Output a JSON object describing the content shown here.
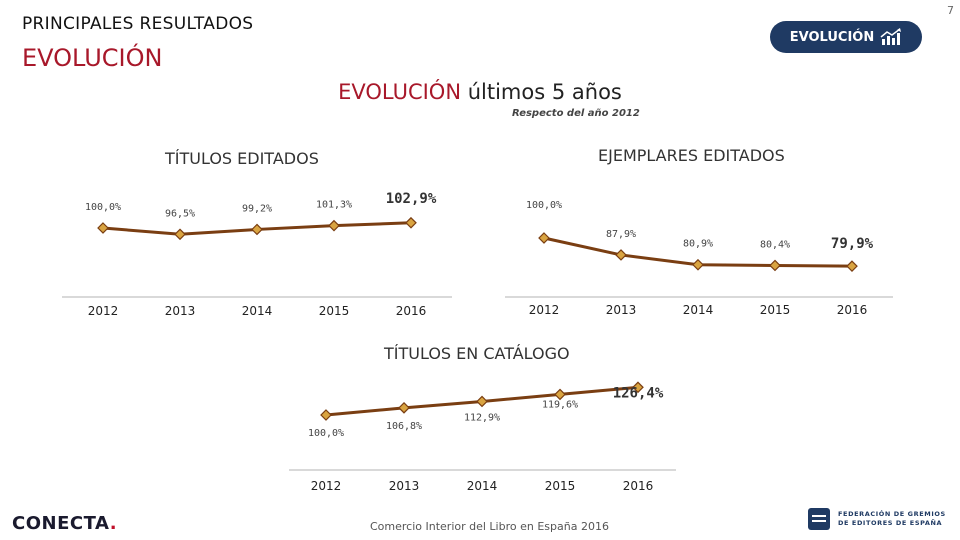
{
  "page": {
    "number": "7",
    "header": "PRINCIPALES RESULTADOS",
    "section": "EVOLUCIÓN",
    "badge_label": "EVOLUCIÓN",
    "title_accent": "EVOLUCIÓN",
    "title_rest": " últimos 5 años",
    "subtitle": "Respecto del año 2012",
    "footer_logo": "CONECTA",
    "footer_source": "Comercio Interior del Libro en España 2016",
    "federation_line1": "FEDERACIÓN DE GREMIOS",
    "federation_line2": "DE EDITORES DE ESPAÑA"
  },
  "colors": {
    "brand_red": "#a8182a",
    "badge_navy": "#1f3a63",
    "line": "#7a3e12",
    "marker": "#d9a441"
  },
  "chart_data": [
    {
      "type": "line",
      "title": "TÍTULOS EDITADOS",
      "categories": [
        "2012",
        "2013",
        "2014",
        "2015",
        "2016"
      ],
      "values": [
        100.0,
        96.5,
        99.2,
        101.3,
        102.9
      ],
      "labels": [
        "100,0%",
        "96,5%",
        "99,2%",
        "101,3%",
        "102,9%"
      ],
      "ylim": [
        0,
        130
      ]
    },
    {
      "type": "line",
      "title": "EJEMPLARES EDITADOS",
      "categories": [
        "2012",
        "2013",
        "2014",
        "2015",
        "2016"
      ],
      "values": [
        100.0,
        87.9,
        80.9,
        80.4,
        79.9
      ],
      "labels": [
        "100,0%",
        "87,9%",
        "80,9%",
        "80,4%",
        "79,9%"
      ],
      "ylim": [
        0,
        130
      ]
    },
    {
      "type": "line",
      "title": "TÍTULOS EN CATÁLOGO",
      "categories": [
        "2012",
        "2013",
        "2014",
        "2015",
        "2016"
      ],
      "values": [
        100.0,
        106.8,
        112.9,
        119.6,
        126.4
      ],
      "labels": [
        "100,0%",
        "106,8%",
        "112,9%",
        "119,6%",
        "126,4%"
      ],
      "ylim": [
        0,
        130
      ]
    }
  ]
}
